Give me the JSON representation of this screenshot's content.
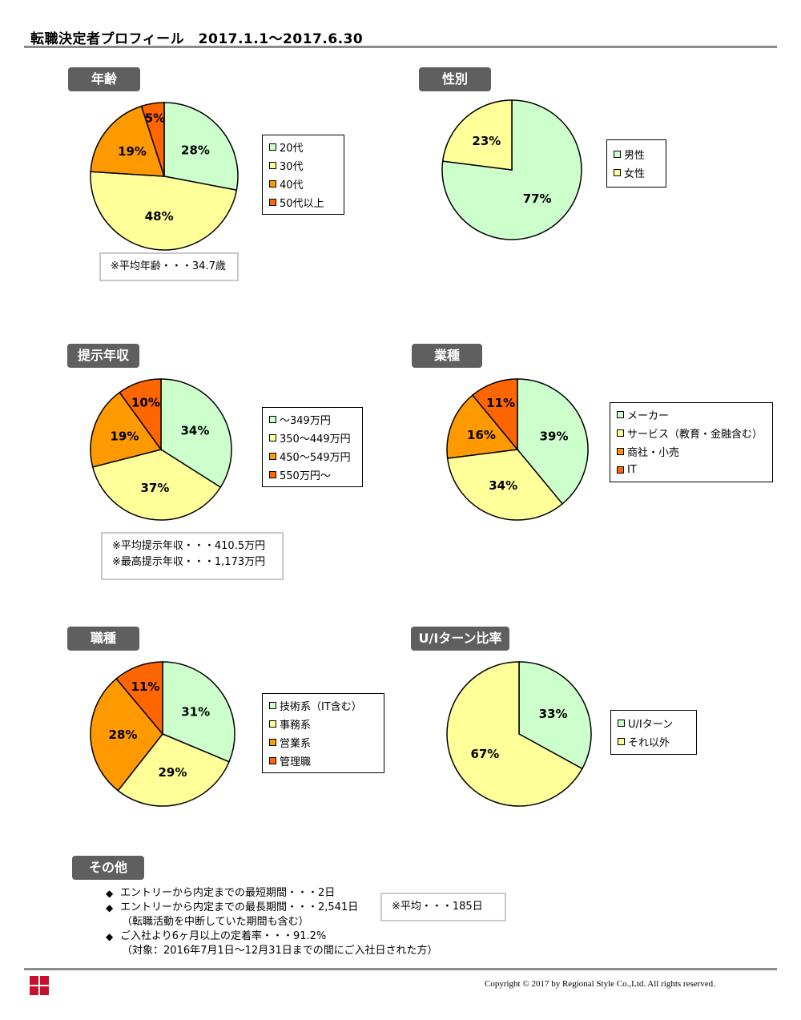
{
  "header": {
    "title": "転職決定者プロフィール　2017.1.1～2017.6.30"
  },
  "colors": {
    "mint": "#ccffcc",
    "cream": "#ffff99",
    "orange": "#ff9900",
    "red_orange": "#ff6600",
    "badge": "#5f5f5f",
    "rule": "#8c8c8c"
  },
  "sections": {
    "age": {
      "label": "年齢",
      "legend": [
        "20代",
        "30代",
        "40代",
        "50代以上"
      ],
      "notes": [
        "※平均年齢・・・34.7歳"
      ]
    },
    "gender": {
      "label": "性別",
      "legend": [
        "男性",
        "女性"
      ],
      "notes": []
    },
    "salary": {
      "label": "提示年収",
      "legend": [
        "～349万円",
        "350～449万円",
        "450～549万円",
        "550万円～"
      ],
      "notes": [
        "※平均提示年収・・・410.5万円",
        "※最高提示年収・・・1,173万円"
      ]
    },
    "industry": {
      "label": "業種",
      "legend": [
        "メーカー",
        "サービス（教育・金融含む）",
        "商社・小売",
        "IT"
      ],
      "notes": []
    },
    "occupation": {
      "label": "職種",
      "legend": [
        "技術系（IT含む）",
        "事務系",
        "営業系",
        "管理職"
      ],
      "notes": []
    },
    "uiturn": {
      "label": "U/Iターン比率",
      "legend": [
        "U/Iターン",
        "それ以外"
      ],
      "notes": []
    }
  },
  "other": {
    "label": "その他",
    "bullet": "◆",
    "lines": [
      {
        "bullet": true,
        "text": "エントリーから内定までの最短期間・・・2日"
      },
      {
        "bullet": true,
        "text": "エントリーから内定までの最長期間・・・2,541日"
      },
      {
        "bullet": false,
        "text": "（転職活動を中断していた期間も含む）"
      },
      {
        "bullet": true,
        "text": "ご入社より6ヶ月以上の定着率・・・91.2%"
      },
      {
        "bullet": false,
        "text": "（対象：2016年7月1日～12月31日までの間にご入社日された方）"
      }
    ],
    "note": "※平均・・・185日"
  },
  "footer": {
    "copyright": "Copyright ©  2017 by Regional Style Co.,Ltd.  All rights reserved."
  },
  "chart_data": [
    {
      "type": "pie",
      "title": "年齢",
      "categories": [
        "20代",
        "30代",
        "40代",
        "50代以上"
      ],
      "values": [
        28,
        48,
        19,
        5
      ],
      "labels": [
        "28%",
        "48%",
        "19%",
        "5%"
      ],
      "colors": [
        "#ccffcc",
        "#ffff99",
        "#ff9900",
        "#ff6600"
      ]
    },
    {
      "type": "pie",
      "title": "性別",
      "categories": [
        "男性",
        "女性"
      ],
      "values": [
        77,
        23
      ],
      "labels": [
        "77%",
        "23%"
      ],
      "colors": [
        "#ccffcc",
        "#ffff99"
      ]
    },
    {
      "type": "pie",
      "title": "提示年収",
      "categories": [
        "～349万円",
        "350～449万円",
        "450～549万円",
        "550万円～"
      ],
      "values": [
        34,
        37,
        19,
        10
      ],
      "labels": [
        "34%",
        "37%",
        "19%",
        "10%"
      ],
      "colors": [
        "#ccffcc",
        "#ffff99",
        "#ff9900",
        "#ff6600"
      ]
    },
    {
      "type": "pie",
      "title": "業種",
      "categories": [
        "メーカー",
        "サービス（教育・金融含む）",
        "商社・小売",
        "IT"
      ],
      "values": [
        39,
        34,
        16,
        11
      ],
      "labels": [
        "39%",
        "34%",
        "16%",
        "11%"
      ],
      "colors": [
        "#ccffcc",
        "#ffff99",
        "#ff9900",
        "#ff6600"
      ]
    },
    {
      "type": "pie",
      "title": "職種",
      "categories": [
        "技術系（IT含む）",
        "事務系",
        "営業系",
        "管理職"
      ],
      "values": [
        31,
        29,
        28,
        11
      ],
      "labels": [
        "31%",
        "29%",
        "28%",
        "11%"
      ],
      "colors": [
        "#ccffcc",
        "#ffff99",
        "#ff9900",
        "#ff6600"
      ]
    },
    {
      "type": "pie",
      "title": "U/Iターン比率",
      "categories": [
        "U/Iターン",
        "それ以外"
      ],
      "values": [
        33,
        67
      ],
      "labels": [
        "33%",
        "67%"
      ],
      "colors": [
        "#ccffcc",
        "#ffff99"
      ]
    }
  ]
}
